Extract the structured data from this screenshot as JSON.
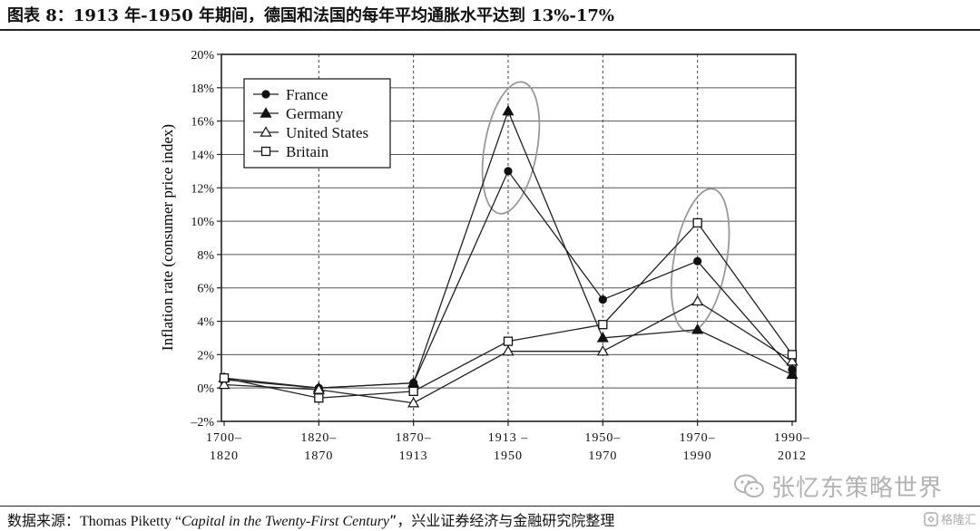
{
  "figure": {
    "title": "图表 8：1913 年-1950 年期间，德国和法国的每年平均通胀水平达到 13%-17%",
    "source_lead": "数据来源：",
    "source_author": "Thomas Piketty “",
    "source_book": "Capital in the Twenty-First Century",
    "source_tail": "”，兴业证券经济与金融研究院整理"
  },
  "watermark": {
    "text": "张忆东策略世界",
    "icon": "wechat-icon"
  },
  "corner_mark": {
    "text": "格隆汇",
    "icon": "logo-icon"
  },
  "chart_data": {
    "type": "line",
    "title": "",
    "xlabel": "",
    "ylabel": "Inflation rate (consumer price index)",
    "ylim": [
      -2,
      20
    ],
    "yticks": [
      -2,
      0,
      2,
      4,
      6,
      8,
      10,
      12,
      14,
      16,
      18,
      20
    ],
    "ytick_labels": [
      "–2%",
      "0%",
      "2%",
      "4%",
      "6%",
      "8%",
      "10%",
      "12%",
      "14%",
      "16%",
      "18%",
      "20%"
    ],
    "categories": [
      [
        "1700–",
        "1820"
      ],
      [
        "1820–",
        "1870"
      ],
      [
        "1870–",
        "1913"
      ],
      [
        "1913 –",
        "1950"
      ],
      [
        "1950–",
        "1970"
      ],
      [
        "1970–",
        "1990"
      ],
      [
        "1990–",
        "2012"
      ]
    ],
    "grid": true,
    "legend_position": "top-left",
    "series": [
      {
        "name": "France",
        "marker": "circle-filled",
        "values": [
          0.5,
          0.0,
          0.3,
          13.0,
          5.3,
          7.6,
          1.1
        ]
      },
      {
        "name": "Germany",
        "marker": "triangle-filled",
        "values": [
          0.6,
          0.0,
          0.3,
          16.6,
          3.0,
          3.5,
          0.8
        ]
      },
      {
        "name": "United States",
        "marker": "triangle-open",
        "values": [
          0.2,
          -0.1,
          -0.9,
          2.2,
          2.2,
          5.2,
          1.6
        ]
      },
      {
        "name": "Britain",
        "marker": "square-open",
        "values": [
          0.6,
          -0.6,
          -0.2,
          2.8,
          3.8,
          9.9,
          2.0
        ]
      }
    ],
    "highlights": [
      {
        "category_index": 3,
        "y_from": 10.4,
        "y_to": 18.4
      },
      {
        "category_index": 5,
        "y_from": 3.3,
        "y_to": 12.0
      }
    ]
  }
}
